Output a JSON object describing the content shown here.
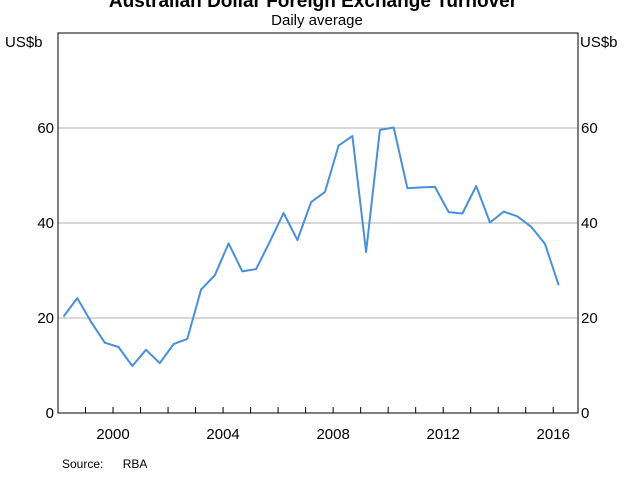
{
  "chart_data": {
    "type": "line",
    "title": "Australian Dollar Foreign Exchange Turnover",
    "subtitle": "Daily average",
    "ylabel_left": "US$b",
    "ylabel_right": "US$b",
    "ylim": [
      0,
      80
    ],
    "yticks": [
      0,
      20,
      40,
      60
    ],
    "xlim": [
      1998.0,
      2016.9
    ],
    "xticks": [
      2000,
      2004,
      2008,
      2012,
      2016
    ],
    "grid": true,
    "line_color": "#4a90d9",
    "source_label": "Source:",
    "source_value": "RBA",
    "series": [
      {
        "x": [
          1998.2,
          1998.7,
          1999.2,
          1999.7,
          2000.2,
          2000.7,
          2001.2,
          2001.7,
          2002.2,
          2002.7,
          2003.2,
          2003.7,
          2004.2,
          2004.7,
          2005.2,
          2005.7,
          2006.2,
          2006.7,
          2007.2,
          2007.7,
          2008.2,
          2008.7,
          2009.2,
          2009.7,
          2010.2,
          2010.7,
          2011.2,
          2011.7,
          2012.2,
          2012.7,
          2013.2,
          2013.7,
          2014.2,
          2014.7,
          2015.2,
          2015.7,
          2016.2
        ],
        "y": [
          20.3,
          24.2,
          19.2,
          14.8,
          13.9,
          9.9,
          13.3,
          10.5,
          14.5,
          15.6,
          26.0,
          29.0,
          35.7,
          29.8,
          30.3,
          36.1,
          42.1,
          36.4,
          44.4,
          46.5,
          56.3,
          58.3,
          33.9,
          59.6,
          60.1,
          47.3,
          47.5,
          47.6,
          42.3,
          42.0,
          47.8,
          40.1,
          42.4,
          41.4,
          39.2,
          35.6,
          26.9
        ]
      }
    ]
  }
}
